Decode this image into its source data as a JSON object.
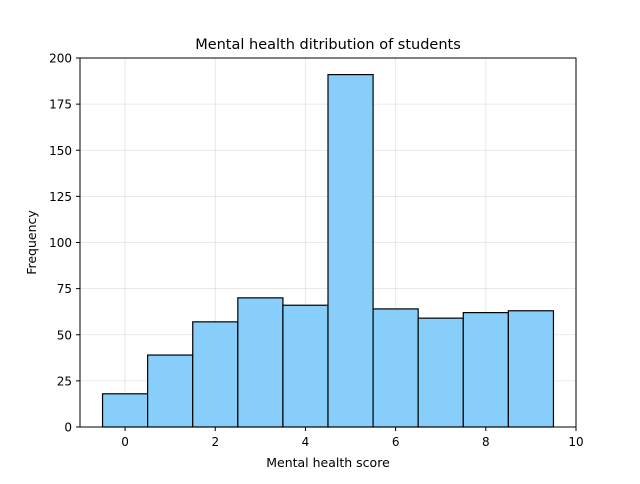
{
  "chart_data": {
    "type": "bar",
    "title": "Mental health ditribution of students",
    "xlabel": "Mental health score",
    "ylabel": "Frequency",
    "bin_edges": [
      -0.5,
      0.5,
      1.5,
      2.5,
      3.5,
      4.5,
      5.5,
      6.5,
      7.5,
      8.5,
      9.5
    ],
    "values": [
      18,
      39,
      57,
      70,
      66,
      191,
      64,
      59,
      62,
      63
    ],
    "xlim": [
      -1,
      10
    ],
    "ylim": [
      0,
      200
    ],
    "xticks": [
      "0",
      "2",
      "4",
      "6",
      "8",
      "10"
    ],
    "yticks": [
      "0",
      "25",
      "50",
      "75",
      "100",
      "125",
      "150",
      "175",
      "200"
    ],
    "grid": true,
    "bar_color": "#87cefa",
    "edge_color": "#000000"
  }
}
